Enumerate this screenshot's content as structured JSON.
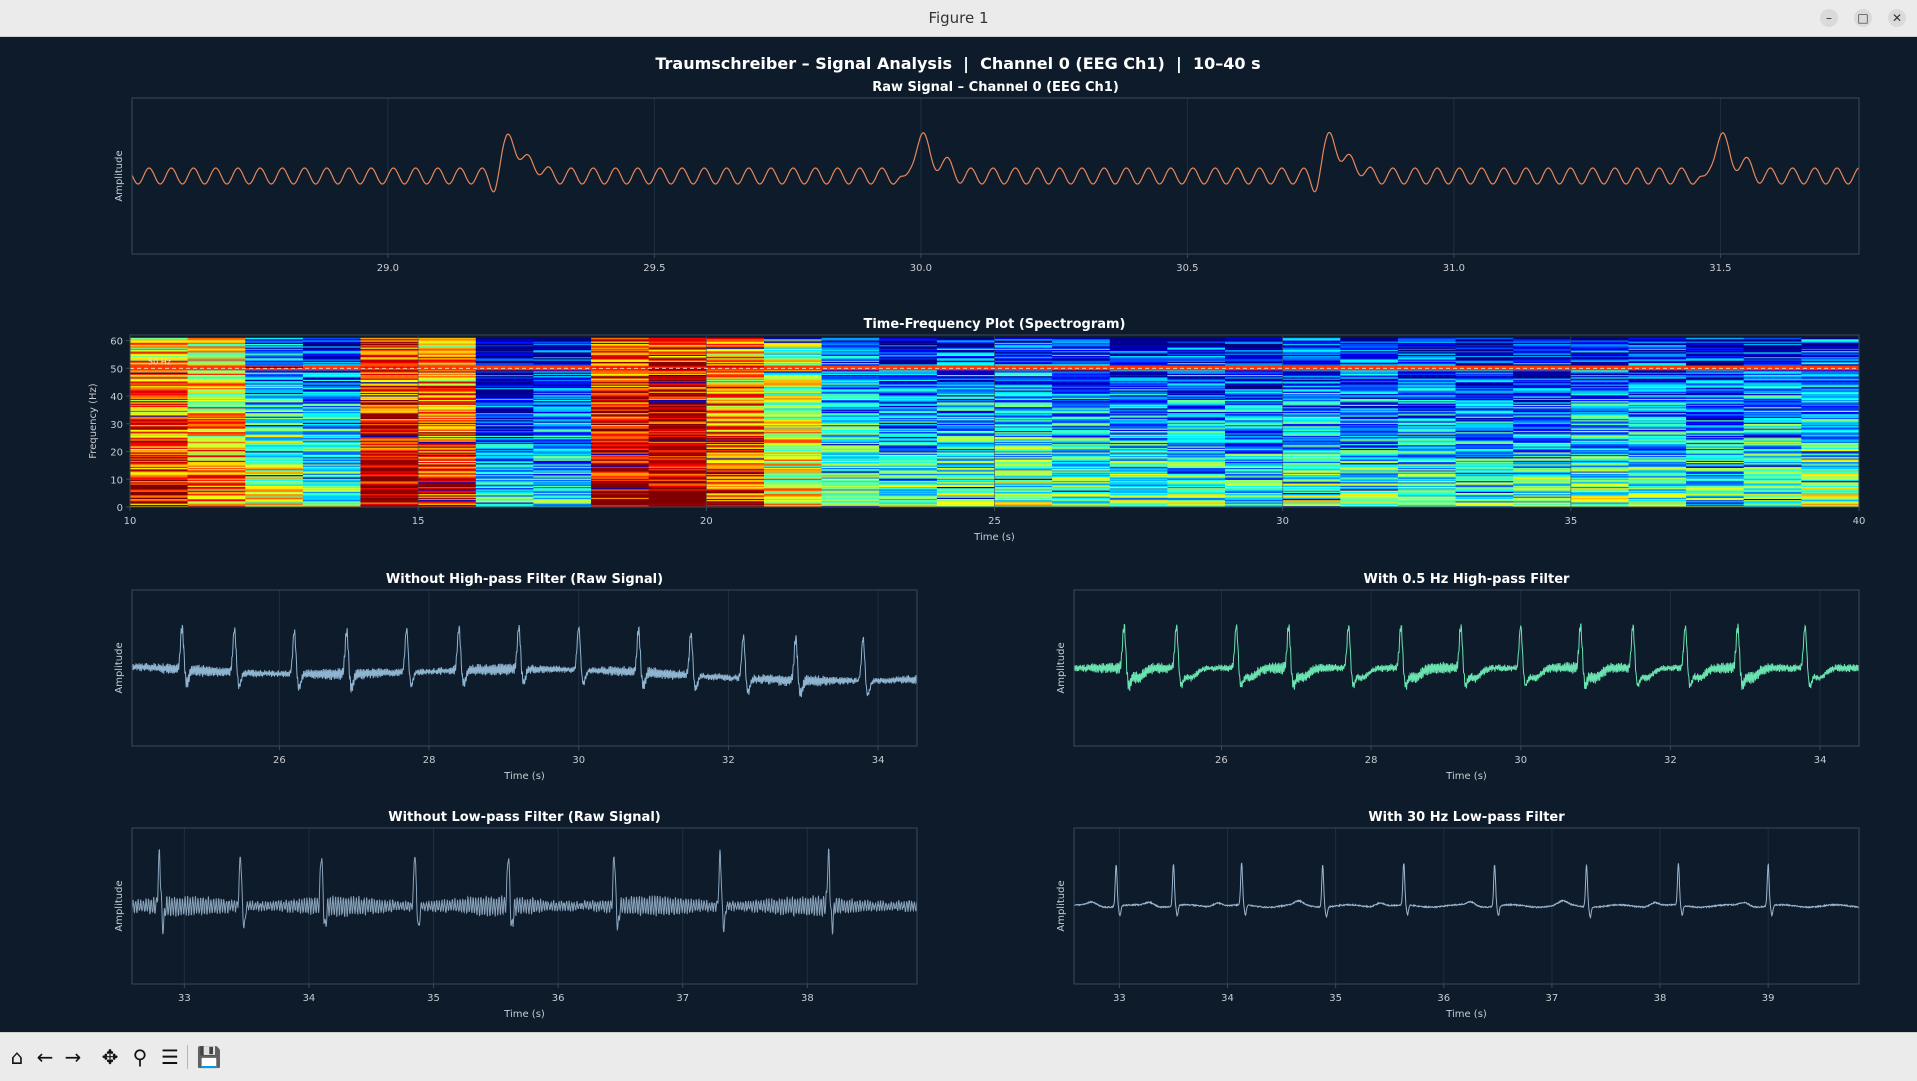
{
  "window": {
    "title": "Figure 1",
    "controls": [
      "minimize-icon",
      "maximize-icon",
      "close-icon"
    ]
  },
  "figure": {
    "suptitle": "Traumschreiber – Signal Analysis  |  Channel 0 (EEG Ch1)  |  10–40 s"
  },
  "toolbar": {
    "buttons": [
      {
        "name": "home-icon",
        "glyph": "⌂"
      },
      {
        "name": "back-icon",
        "glyph": "←"
      },
      {
        "name": "forward-icon",
        "glyph": "→"
      },
      {
        "name": "pan-icon",
        "glyph": "✥"
      },
      {
        "name": "zoom-icon",
        "glyph": "⚲"
      },
      {
        "name": "configure-subplots-icon",
        "glyph": "☰"
      },
      {
        "name": "save-icon",
        "glyph": "💾"
      }
    ]
  },
  "colors": {
    "background": "#0d1b2a",
    "axes_face": "#0d1b2a",
    "spine": "#3a4a5c",
    "text": "#ffffff",
    "tick_text": "#c8ccd2",
    "raw_line": "#e8875a",
    "hp_line": "#6be3b0",
    "nohp_line": "#8fb4d0",
    "nolp_line": "#8aa4bc",
    "lp_line": "#9cb6d0"
  },
  "chart_data": [
    {
      "id": "raw",
      "type": "line",
      "title": "Raw Signal – Channel 0 (EEG Ch1)",
      "xlabel": "",
      "ylabel": "Amplitude",
      "xlim": [
        28.52,
        31.76
      ],
      "xticks": [
        29.0,
        29.5,
        30.0,
        30.5,
        31.0,
        31.5
      ],
      "tick_labels": [
        "29.0",
        "29.5",
        "30.0",
        "30.5",
        "31.0",
        "31.5"
      ],
      "grid": true,
      "spikes_at": [
        29.23,
        30.0,
        30.77,
        31.5
      ],
      "baseline_cycles_per_s": 24,
      "color": "#e8875a"
    },
    {
      "id": "spectrogram",
      "type": "heatmap",
      "title": "Time-Frequency Plot (Spectrogram)",
      "xlabel": "Time (s)",
      "ylabel": "Frequency (Hz)",
      "xlim": [
        10,
        40
      ],
      "ylim": [
        0,
        62
      ],
      "xticks": [
        10,
        15,
        20,
        25,
        30,
        35,
        40
      ],
      "yticks": [
        0,
        10,
        20,
        30,
        40,
        50,
        60
      ],
      "time_bins": [
        10.5,
        11.5,
        12.5,
        13.5,
        14.5,
        15.5,
        16.5,
        17.5,
        18.5,
        19.5,
        20.5,
        21.5,
        22.5,
        23.5,
        24.5,
        25.5,
        26.5,
        27.5,
        28.5,
        29.5,
        30.5,
        31.5,
        32.5,
        33.5,
        34.5,
        35.5,
        36.5,
        37.5,
        38.5,
        39.5
      ],
      "column_level": [
        0.82,
        0.72,
        0.5,
        0.4,
        0.92,
        0.82,
        0.28,
        0.35,
        0.92,
        0.95,
        0.82,
        0.62,
        0.45,
        0.4,
        0.42,
        0.45,
        0.4,
        0.38,
        0.4,
        0.35,
        0.42,
        0.38,
        0.4,
        0.35,
        0.38,
        0.42,
        0.38,
        0.35,
        0.42,
        0.45
      ],
      "line_noise_hz": 50,
      "annotation": "50 Hz",
      "colormap": "jet"
    },
    {
      "id": "no-highpass",
      "type": "line",
      "title": "Without High-pass Filter (Raw Signal)",
      "xlabel": "Time (s)",
      "ylabel": "Amplitude",
      "xlim": [
        24.03,
        34.52
      ],
      "xticks": [
        26,
        28,
        30,
        32,
        34
      ],
      "tick_labels": [
        "26",
        "28",
        "30",
        "32",
        "34"
      ],
      "grid": true,
      "spikes_at": [
        24.7,
        25.4,
        26.2,
        26.9,
        27.7,
        28.4,
        29.2,
        30.0,
        30.8,
        31.5,
        32.2,
        32.9,
        33.8
      ],
      "color": "#8fb4d0"
    },
    {
      "id": "highpass",
      "type": "line",
      "title": "With 0.5 Hz High-pass Filter",
      "xlabel": "Time (s)",
      "ylabel": "Amplitude",
      "xlim": [
        24.03,
        34.52
      ],
      "xticks": [
        26,
        28,
        30,
        32,
        34
      ],
      "tick_labels": [
        "26",
        "28",
        "30",
        "32",
        "34"
      ],
      "grid": true,
      "spikes_at": [
        24.7,
        25.4,
        26.2,
        26.9,
        27.7,
        28.4,
        29.2,
        30.0,
        30.8,
        31.5,
        32.2,
        32.9,
        33.8
      ],
      "color": "#6be3b0"
    },
    {
      "id": "no-lowpass",
      "type": "line",
      "title": "Without Low-pass Filter (Raw Signal)",
      "xlabel": "Time (s)",
      "ylabel": "Amplitude",
      "xlim": [
        32.58,
        38.88
      ],
      "xticks": [
        33,
        34,
        35,
        36,
        37,
        38
      ],
      "tick_labels": [
        "33",
        "34",
        "35",
        "36",
        "37",
        "38"
      ],
      "grid": true,
      "spikes_at": [
        32.8,
        33.45,
        34.1,
        34.85,
        35.6,
        36.45,
        37.3,
        38.17
      ],
      "color": "#8aa4bc"
    },
    {
      "id": "lowpass",
      "type": "line",
      "title": "With 30 Hz Low-pass Filter",
      "xlabel": "Time (s)",
      "ylabel": "Amplitude",
      "xlim": [
        32.58,
        39.84
      ],
      "xticks": [
        33,
        34,
        35,
        36,
        37,
        38,
        39
      ],
      "tick_labels": [
        "33",
        "34",
        "35",
        "36",
        "37",
        "38",
        "39"
      ],
      "grid": true,
      "spikes_at": [
        32.97,
        33.5,
        34.13,
        34.88,
        35.63,
        36.47,
        37.32,
        38.17,
        39.0
      ],
      "color": "#9cb6d0"
    }
  ]
}
